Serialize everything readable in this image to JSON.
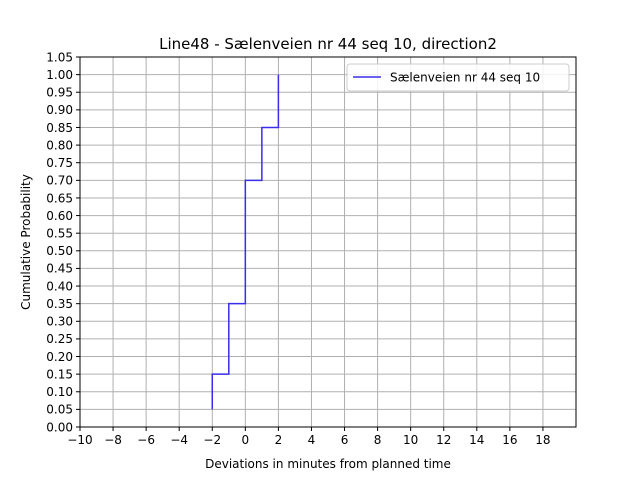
{
  "chart_data": {
    "type": "line",
    "title": "Line48 - Sælenveien nr 44 seq 10, direction2",
    "xlabel": "Deviations in minutes from planned time",
    "ylabel": "Cumulative Probability",
    "xlim": [
      -10,
      20
    ],
    "ylim": [
      0,
      1.05
    ],
    "xticks": [
      "−10",
      "−8",
      "−6",
      "−4",
      "−2",
      "0",
      "2",
      "4",
      "6",
      "8",
      "10",
      "12",
      "14",
      "16",
      "18"
    ],
    "yticks": [
      "0.00",
      "0.05",
      "0.10",
      "0.15",
      "0.20",
      "0.25",
      "0.30",
      "0.35",
      "0.40",
      "0.45",
      "0.50",
      "0.55",
      "0.60",
      "0.65",
      "0.70",
      "0.75",
      "0.80",
      "0.85",
      "0.90",
      "0.95",
      "1.00",
      "1.05"
    ],
    "grid": true,
    "legend_position": "top-right",
    "series": [
      {
        "name": "Sælenveien nr 44 seq 10",
        "color": "#3a2ee8",
        "step": "post",
        "x": [
          -2,
          -2,
          -1,
          -1,
          0,
          0,
          1,
          1,
          2,
          2
        ],
        "y": [
          0.05,
          0.15,
          0.15,
          0.35,
          0.35,
          0.7,
          0.7,
          0.85,
          0.85,
          1.0
        ]
      }
    ]
  }
}
